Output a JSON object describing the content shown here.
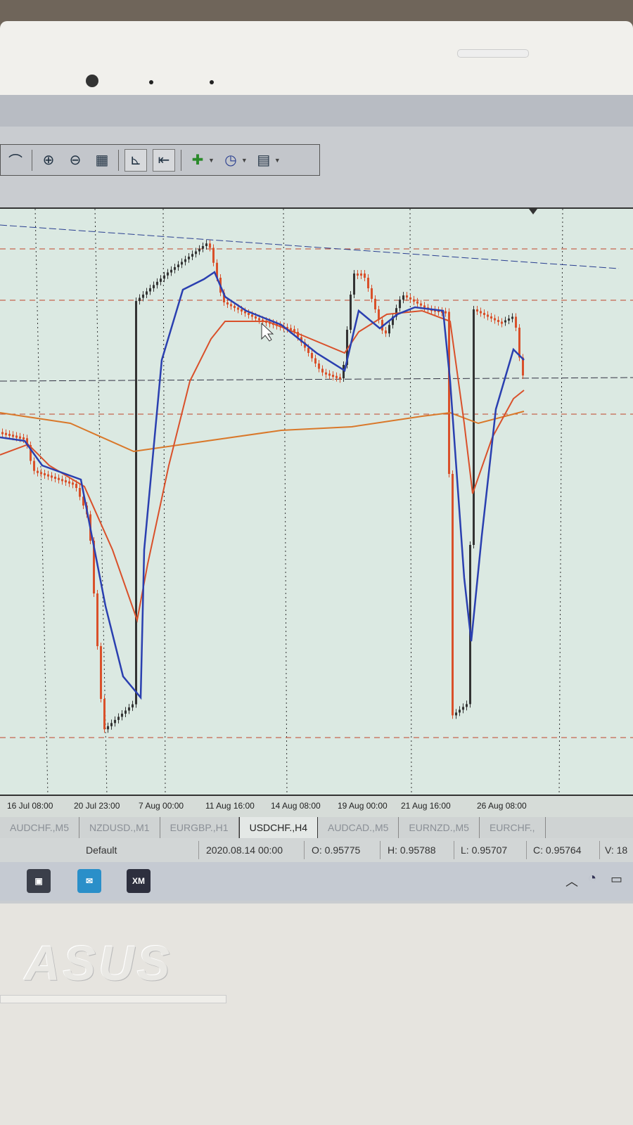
{
  "toolbar": {
    "icons": [
      "zoom-in-icon",
      "zoom-out-icon",
      "tile-windows-icon",
      "chart-shift-icon",
      "auto-scroll-icon",
      "add-indicator-icon",
      "periods-clock-icon",
      "templates-icon"
    ]
  },
  "time_axis": [
    "16 Jul 08:00",
    "20 Jul 23:00",
    "7 Aug 00:00",
    "11 Aug 16:00",
    "14 Aug 08:00",
    "19 Aug 00:00",
    "21 Aug 16:00",
    "26 Aug 08:00"
  ],
  "tabs": [
    {
      "label": "AUDCHF.,M5",
      "active": false
    },
    {
      "label": "NZDUSD.,M1",
      "active": false
    },
    {
      "label": "EURGBP.,H1",
      "active": false
    },
    {
      "label": "USDCHF.,H4",
      "active": true
    },
    {
      "label": "AUDCAD.,M5",
      "active": false
    },
    {
      "label": "EURNZD.,M5",
      "active": false
    },
    {
      "label": "EURCHF.,",
      "active": false
    }
  ],
  "status": {
    "profile": "Default",
    "datetime": "2020.08.14 00:00",
    "open": "O: 0.95775",
    "high": "H: 0.95788",
    "low": "L: 0.95707",
    "close": "C: 0.95764",
    "volume": "V: 18"
  },
  "taskbar": {
    "xm_label": "XM"
  },
  "brand": "ASUS",
  "colors": {
    "chart_bg": "#dbe9e2",
    "fast_ma": "#2a3fb0",
    "mid_ma": "#d9502a",
    "slow_ma": "#d9782a",
    "bull_candle": "#333333",
    "bear_candle": "#d9502a"
  }
}
